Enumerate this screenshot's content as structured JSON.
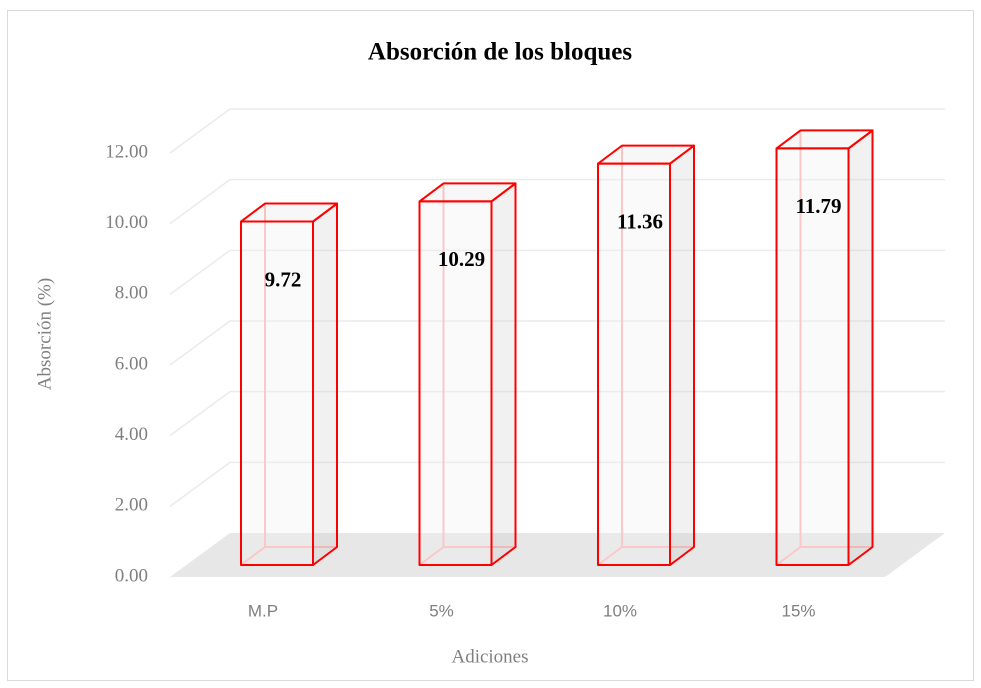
{
  "chart_data": {
    "type": "bar3d",
    "title": "Absorción de los bloques",
    "x_label": "Adiciones",
    "y_label": "Absorción (%)",
    "categories": [
      "M.P",
      "5%",
      "10%",
      "15%"
    ],
    "values": [
      9.72,
      10.29,
      11.36,
      11.79
    ],
    "color": "#ff0000",
    "ylim": [
      0,
      12
    ],
    "yticks": [
      {
        "value": 0,
        "label": "0.00"
      },
      {
        "value": 2,
        "label": "2.00"
      },
      {
        "value": 4,
        "label": "4.00"
      },
      {
        "value": 6,
        "label": "6.00"
      },
      {
        "value": 8,
        "label": "8.00"
      },
      {
        "value": 10,
        "label": "10.00"
      },
      {
        "value": 12,
        "label": "12.00"
      }
    ],
    "grid": true
  }
}
